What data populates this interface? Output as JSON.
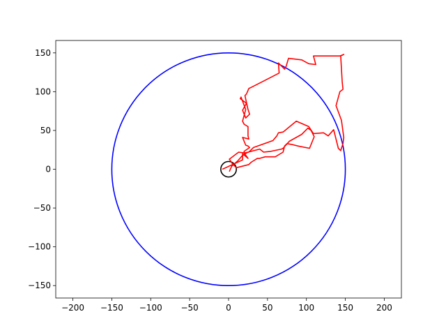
{
  "chart_data": {
    "type": "line",
    "title": "",
    "xlabel": "",
    "ylabel": "",
    "xlim": [
      -222,
      222
    ],
    "ylim": [
      -166,
      166
    ],
    "xticks": [
      -200,
      -150,
      -100,
      -50,
      0,
      50,
      100,
      150,
      200
    ],
    "yticks": [
      -150,
      -100,
      -50,
      0,
      50,
      100,
      150
    ],
    "xtick_labels": [
      "−200",
      "−150",
      "−100",
      "−50",
      "0",
      "50",
      "100",
      "150",
      "200"
    ],
    "ytick_labels": [
      "−150",
      "−100",
      "−50",
      "0",
      "50",
      "100",
      "150"
    ],
    "grid": false,
    "series": [
      {
        "kind": "circle",
        "color": "#0000ff",
        "center": [
          0,
          0
        ],
        "radius": 150
      },
      {
        "kind": "circle",
        "color": "#000000",
        "center": [
          0,
          0
        ],
        "radius": 10
      },
      {
        "kind": "path",
        "color": "#ff0000",
        "points": [
          [
            -8,
            0
          ],
          [
            18,
            12
          ],
          [
            18,
            20
          ],
          [
            25,
            14
          ],
          [
            20,
            21
          ],
          [
            26,
            22
          ],
          [
            32,
            28
          ],
          [
            57,
            37
          ],
          [
            62,
            43
          ],
          [
            64,
            47
          ],
          [
            70,
            48
          ],
          [
            87,
            62
          ],
          [
            103,
            55
          ],
          [
            109,
            46
          ],
          [
            122,
            47
          ],
          [
            128,
            43
          ],
          [
            135,
            51
          ],
          [
            141,
            27
          ],
          [
            144,
            24
          ],
          [
            147,
            33
          ],
          [
            148,
            41
          ],
          [
            145,
            63
          ],
          [
            138,
            82
          ],
          [
            143,
            100
          ],
          [
            147,
            103
          ],
          [
            146,
            112
          ],
          [
            144,
            146
          ],
          [
            148,
            148
          ],
          [
            143,
            146
          ],
          [
            109,
            146
          ],
          [
            112,
            135
          ],
          [
            103,
            136
          ],
          [
            94,
            141
          ],
          [
            77,
            143
          ],
          [
            74,
            133
          ],
          [
            72,
            129
          ],
          [
            64,
            137
          ],
          [
            65,
            124
          ],
          [
            30,
            106
          ],
          [
            26,
            104
          ],
          [
            23,
            97
          ],
          [
            21,
            95
          ],
          [
            25,
            77
          ],
          [
            27,
            71
          ],
          [
            22,
            66
          ],
          [
            18,
            76
          ],
          [
            23,
            85
          ],
          [
            15,
            91
          ],
          [
            16,
            93
          ],
          [
            22,
            77
          ],
          [
            18,
            62
          ],
          [
            20,
            58
          ],
          [
            25,
            55
          ],
          [
            25,
            43
          ],
          [
            26,
            39
          ],
          [
            18,
            41
          ],
          [
            22,
            31
          ],
          [
            25,
            30
          ],
          [
            27,
            28
          ],
          [
            20,
            23
          ],
          [
            20,
            21
          ],
          [
            13,
            22
          ],
          [
            1,
            13
          ],
          [
            5,
            7
          ],
          [
            10,
            2
          ],
          [
            26,
            6
          ],
          [
            29,
            9
          ],
          [
            37,
            14
          ],
          [
            40,
            14
          ],
          [
            47,
            16
          ],
          [
            60,
            16
          ],
          [
            70,
            22
          ],
          [
            72,
            30
          ],
          [
            75,
            33
          ],
          [
            81,
            32
          ],
          [
            89,
            30
          ],
          [
            104,
            27
          ],
          [
            110,
            42
          ],
          [
            106,
            50
          ],
          [
            102,
            53
          ],
          [
            94,
            45
          ],
          [
            78,
            36
          ],
          [
            70,
            27
          ],
          [
            68,
            26
          ],
          [
            54,
            23
          ],
          [
            45,
            22
          ],
          [
            40,
            26
          ],
          [
            25,
            22
          ],
          [
            18,
            18
          ],
          [
            12,
            11
          ],
          [
            4,
            4
          ],
          [
            1,
            -3
          ]
        ]
      }
    ]
  }
}
